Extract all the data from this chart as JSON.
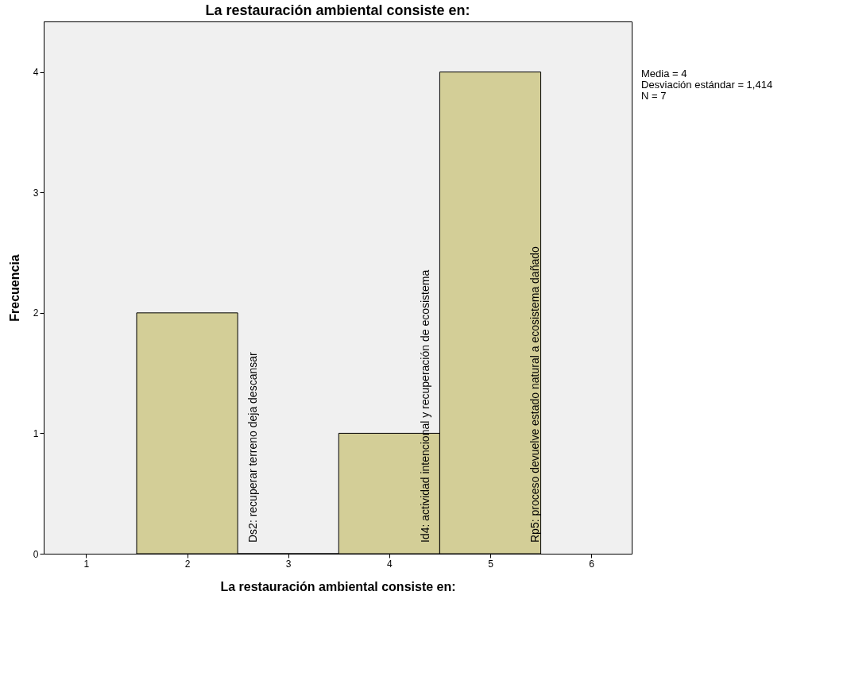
{
  "chart_data": {
    "type": "histogram",
    "title": "La restauración ambiental consiste en:",
    "xlabel": "La restauración ambiental consiste en:",
    "ylabel": "Frecuencia",
    "bins": [
      1.5,
      2.5,
      3.5,
      4.5,
      5.5
    ],
    "values": [
      2,
      0,
      1,
      4
    ],
    "color": "#d3ce97",
    "xlim": [
      0.58,
      6.4
    ],
    "ylim": [
      0,
      4.42
    ],
    "xticks": [
      1,
      2,
      3,
      4,
      5,
      6
    ],
    "yticks": [
      0,
      1,
      2,
      3,
      4
    ],
    "grid": false,
    "annotations": [
      "Ds2: recuperar terreno deja descansar",
      "Id4: actividad intencional y recuperación de ecosistema",
      "Rp5: proceso devuelve estado natural a ecosistema dañado",
      "Media = 4",
      "Desviación estándar = 1,414",
      "N = 7"
    ]
  }
}
